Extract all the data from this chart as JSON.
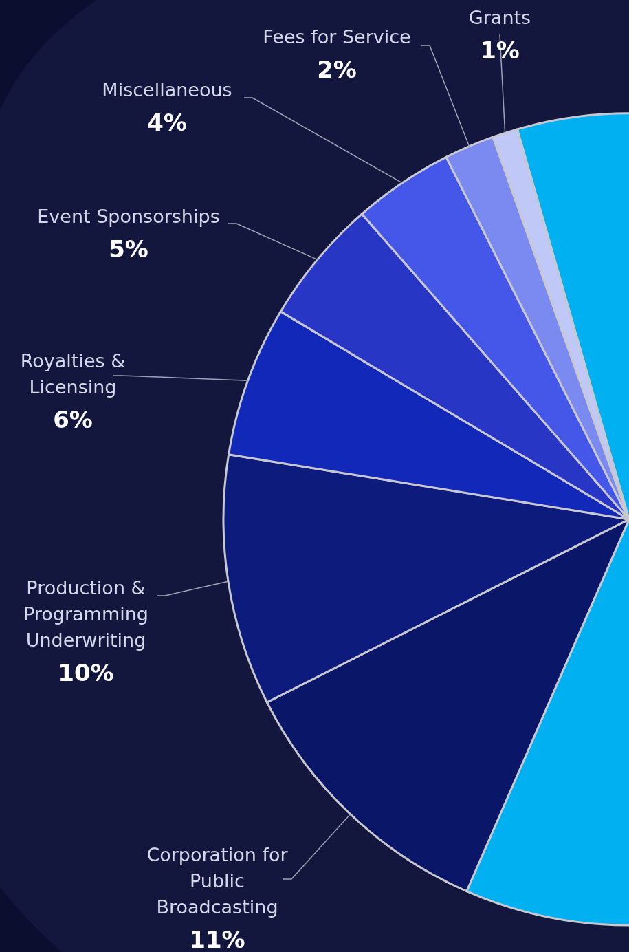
{
  "chart_data": {
    "type": "pie",
    "categories": [
      null,
      "Corporation for Public Broadcasting",
      "Production & Programming Underwriting",
      "Royalties & Licensing",
      "Event Sponsorships",
      "Miscellaneous",
      "Fees for Service",
      "Grants"
    ],
    "values": [
      61,
      11,
      10,
      6,
      5,
      4,
      2,
      1
    ],
    "value_labels": [
      null,
      "11%",
      "10%",
      "6%",
      "5%",
      "4%",
      "2%",
      "1%"
    ],
    "colors": [
      "#00b0f0",
      "#0a1667",
      "#0d1b7c",
      "#1228b8",
      "#2836c6",
      "#4557e8",
      "#7b8af0",
      "#c0c8f8"
    ]
  }
}
